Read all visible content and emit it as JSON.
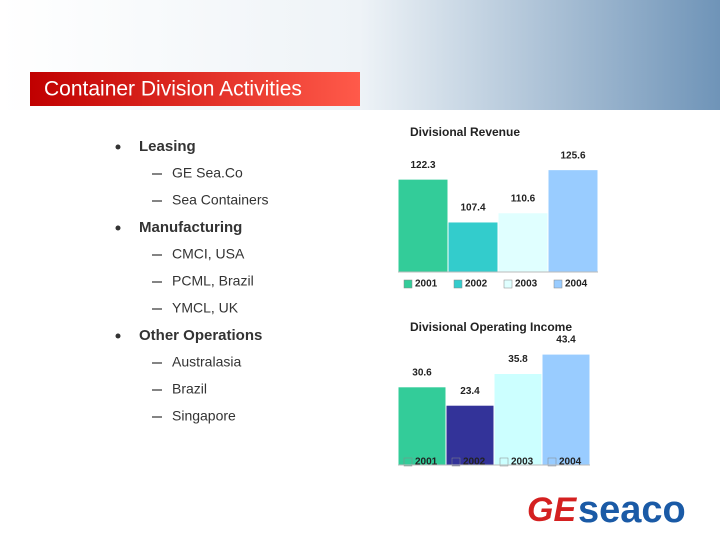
{
  "title": "Container Division Activities",
  "bullets": [
    {
      "text": "Leasing",
      "sub": [
        "GE Sea.Co",
        "Sea Containers"
      ]
    },
    {
      "text": "Manufacturing",
      "sub": [
        "CMCI, USA",
        "PCML, Brazil",
        "YMCL, UK"
      ]
    },
    {
      "text": "Other Operations",
      "sub": [
        "Australasia",
        "Brazil",
        "Singapore"
      ]
    }
  ],
  "logo": {
    "left": "GE",
    "right": "seaco"
  },
  "chart_data": [
    {
      "type": "bar",
      "title": "Divisional Revenue",
      "categories": [
        "2001",
        "2002",
        "2003",
        "2004"
      ],
      "values": [
        122.3,
        107.4,
        110.6,
        125.6
      ],
      "colors": [
        "#33cc99",
        "#33cccc",
        "#e0ffff",
        "#99ccff"
      ],
      "ylim": [
        90,
        130
      ]
    },
    {
      "type": "bar",
      "title": "Divisional Operating Income",
      "categories": [
        "2001",
        "2002",
        "2003",
        "2004"
      ],
      "values": [
        30.6,
        23.4,
        35.8,
        43.4
      ],
      "colors": [
        "#33cc99",
        "#333399",
        "#ccffff",
        "#99ccff"
      ],
      "ylim": [
        0,
        45
      ]
    }
  ]
}
